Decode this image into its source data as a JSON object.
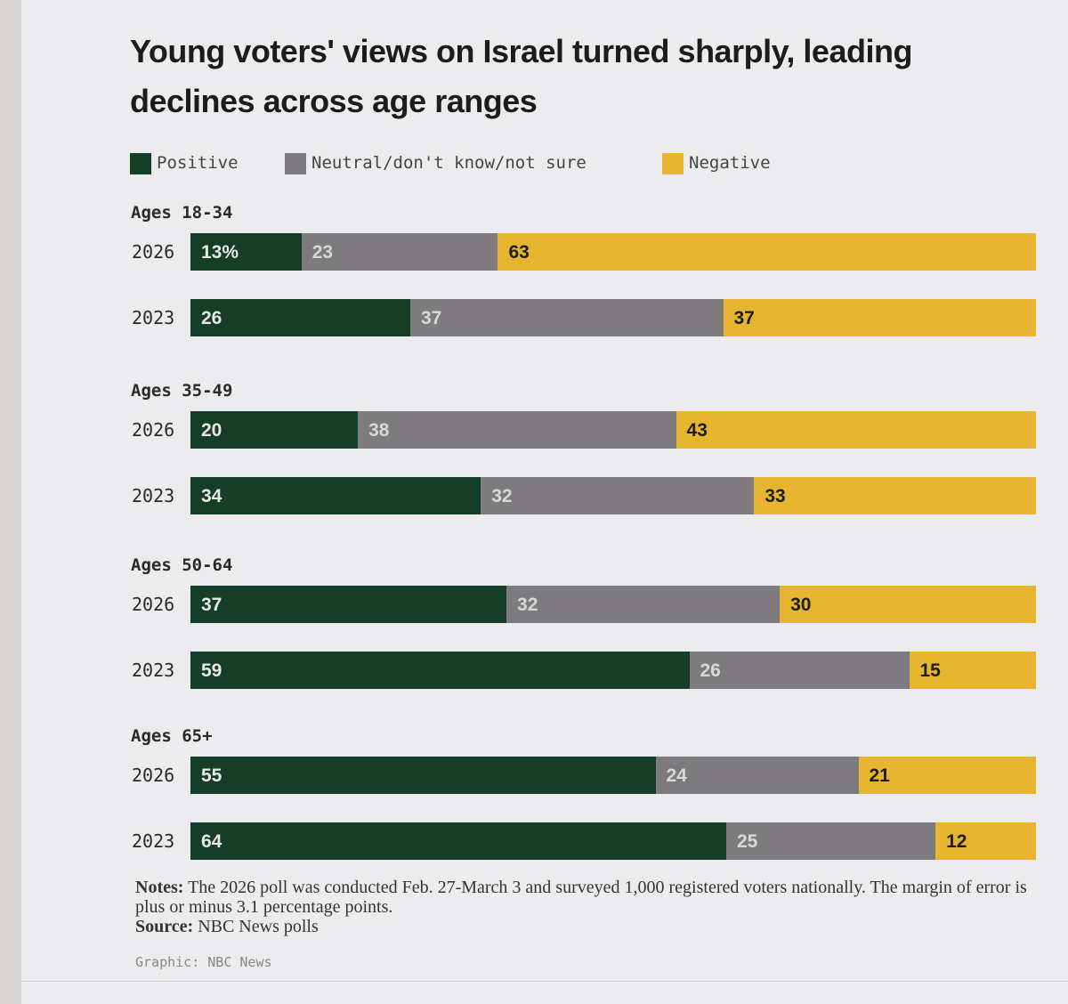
{
  "chart_data": {
    "type": "bar",
    "orientation": "horizontal",
    "stacked": true,
    "title": "Young voters' views on Israel turned sharply, leading declines across age ranges",
    "legend": [
      {
        "key": "positive",
        "label": "Positive",
        "color": "#163d27"
      },
      {
        "key": "neutral",
        "label": "Neutral/don't know/not sure",
        "color": "#7d7b7e"
      },
      {
        "key": "negative",
        "label": "Negative",
        "color": "#e6b42e"
      }
    ],
    "groups": [
      {
        "label": "Ages 18-34",
        "rows": [
          {
            "year": "2026",
            "positive": 13,
            "neutral": 23,
            "negative": 63,
            "positive_label": "13%",
            "neutral_label": "23",
            "negative_label": "63"
          },
          {
            "year": "2023",
            "positive": 26,
            "neutral": 37,
            "negative": 37,
            "positive_label": "26",
            "neutral_label": "37",
            "negative_label": "37"
          }
        ]
      },
      {
        "label": "Ages 35-49",
        "rows": [
          {
            "year": "2026",
            "positive": 20,
            "neutral": 38,
            "negative": 43,
            "positive_label": "20",
            "neutral_label": "38",
            "negative_label": "43"
          },
          {
            "year": "2023",
            "positive": 34,
            "neutral": 32,
            "negative": 33,
            "positive_label": "34",
            "neutral_label": "32",
            "negative_label": "33"
          }
        ]
      },
      {
        "label": "Ages 50-64",
        "rows": [
          {
            "year": "2026",
            "positive": 37,
            "neutral": 32,
            "negative": 30,
            "positive_label": "37",
            "neutral_label": "32",
            "negative_label": "30"
          },
          {
            "year": "2023",
            "positive": 59,
            "neutral": 26,
            "negative": 15,
            "positive_label": "59",
            "neutral_label": "26",
            "negative_label": "15"
          }
        ]
      },
      {
        "label": "Ages 65+",
        "rows": [
          {
            "year": "2026",
            "positive": 55,
            "neutral": 24,
            "negative": 21,
            "positive_label": "55",
            "neutral_label": "24",
            "negative_label": "21"
          },
          {
            "year": "2023",
            "positive": 64,
            "neutral": 25,
            "negative": 12,
            "positive_label": "64",
            "neutral_label": "25",
            "negative_label": "12"
          }
        ]
      }
    ]
  },
  "notes": {
    "notes_label": "Notes:",
    "notes_text": "The 2026 poll was conducted Feb. 27-March 3 and surveyed 1,000 registered voters nationally. The margin of error is plus or minus 3.1 percentage points.",
    "source_label": "Source:",
    "source_text": "NBC News polls"
  },
  "credit": "Graphic: NBC News"
}
